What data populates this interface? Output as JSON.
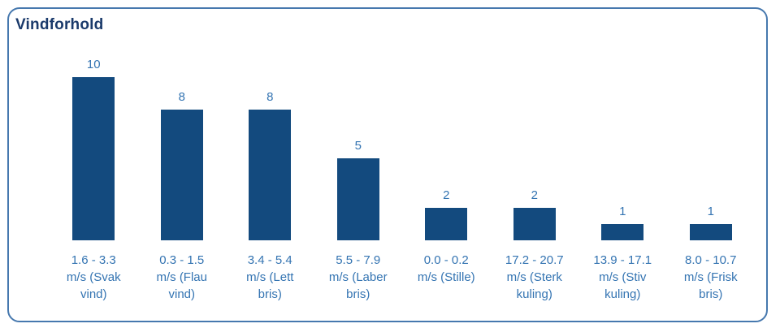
{
  "card": {
    "title": "Vindforhold"
  },
  "colors": {
    "bar_fill": "#134A7E",
    "label_text": "#3474B2",
    "title_text": "#1A3A6B",
    "card_border": "#4678AE",
    "background": "#FFFFFF"
  },
  "chart_data": {
    "type": "bar",
    "title": "Vindforhold",
    "categories": [
      "1.6 - 3.3 m/s (Svak vind)",
      "0.3 - 1.5 m/s (Flau vind)",
      "3.4 - 5.4 m/s (Lett bris)",
      "5.5 - 7.9 m/s (Laber bris)",
      "0.0 - 0.2 m/s (Stille)",
      "17.2 - 20.7 m/s (Sterk kuling)",
      "13.9 - 17.1 m/s (Stiv kuling)",
      "8.0 - 10.7 m/s (Frisk bris)"
    ],
    "category_lines": [
      [
        "1.6 - 3.3",
        "m/s (Svak",
        "vind)"
      ],
      [
        "0.3 - 1.5",
        "m/s (Flau",
        "vind)"
      ],
      [
        "3.4 - 5.4",
        "m/s (Lett",
        "bris)"
      ],
      [
        "5.5 - 7.9",
        "m/s (Laber",
        "bris)"
      ],
      [
        "0.0 - 0.2",
        "m/s (Stille)"
      ],
      [
        "17.2 - 20.7",
        "m/s (Sterk",
        "kuling)"
      ],
      [
        "13.9 - 17.1",
        "m/s (Stiv",
        "kuling)"
      ],
      [
        "8.0 - 10.7",
        "m/s (Frisk",
        "bris)"
      ]
    ],
    "values": [
      10,
      8,
      8,
      5,
      2,
      2,
      1,
      1
    ],
    "xlabel": "",
    "ylabel": "",
    "ylim": [
      0,
      10
    ],
    "grid": false,
    "legend": false,
    "value_labels_shown": true
  }
}
